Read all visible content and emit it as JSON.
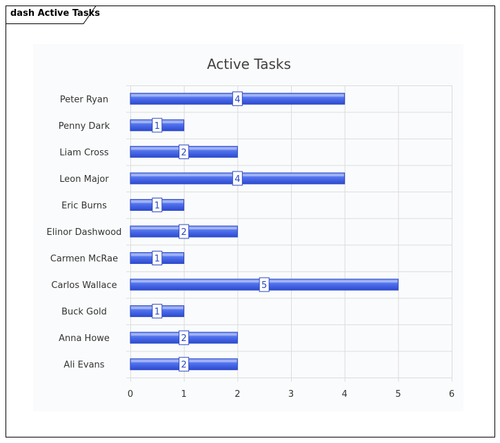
{
  "diagram": {
    "tab_label": "dash Active Tasks"
  },
  "chart_data": {
    "type": "bar",
    "orientation": "horizontal",
    "title": "Active Tasks",
    "xlabel": "",
    "ylabel": "",
    "categories": [
      "Peter Ryan",
      "Penny Dark",
      "Liam Cross",
      "Leon Major",
      "Eric Burns",
      "Elinor Dashwood",
      "Carmen McRae",
      "Carlos Wallace",
      "Buck Gold",
      "Anna Howe",
      "Ali Evans"
    ],
    "values": [
      4,
      1,
      2,
      4,
      1,
      2,
      1,
      5,
      1,
      2,
      2
    ],
    "xlim": [
      0,
      6
    ],
    "xticks": [
      0,
      1,
      2,
      3,
      4,
      5,
      6
    ],
    "grid": true,
    "legend": "none",
    "data_labels": true,
    "colors": {
      "bar_fill_top": "#8fa6f6",
      "bar_fill_mid": "#4f70ec",
      "bar_fill_bottom": "#2c4bd0",
      "bar_stroke": "#2b47c2",
      "label_box_fill": "#ffffff",
      "label_box_stroke": "#2b47c2",
      "label_text": "#2b47c2",
      "grid": "#dcdcdc",
      "title_text": "#404040",
      "axis_text": "#333333"
    }
  }
}
